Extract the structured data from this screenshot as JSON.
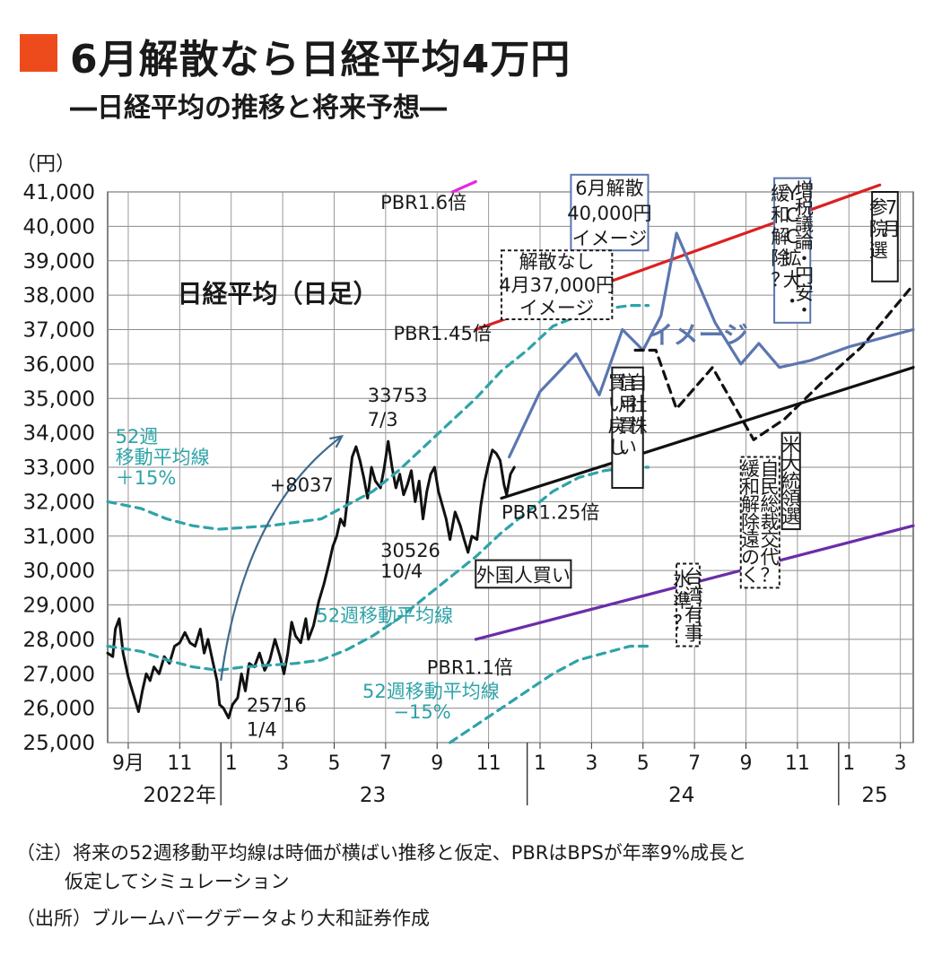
{
  "header": {
    "title": "6月解散なら日経平均4万円",
    "subtitle": "―日経平均の推移と将来予想―"
  },
  "notes": {
    "note1": "（注）将来の52週移動平均線は時価が横ばい推移と仮定、PBRはBPSが年率9%成長と",
    "note2": "仮定してシミュレーション",
    "source": "（出所）ブルームバーグデータより大和証券作成"
  },
  "chart_data": {
    "type": "line",
    "title": "日経平均（日足）",
    "ylabel": "（円）",
    "ylim": [
      25000,
      41000
    ],
    "yticks": [
      25000,
      26000,
      27000,
      28000,
      29000,
      30000,
      31000,
      32000,
      33000,
      34000,
      35000,
      36000,
      37000,
      38000,
      39000,
      40000,
      41000
    ],
    "ytick_labels": [
      "25,000",
      "26,000",
      "27,000",
      "28,000",
      "29,000",
      "30,000",
      "31,000",
      "32,000",
      "33,000",
      "34,000",
      "35,000",
      "36,000",
      "37,000",
      "38,000",
      "39,000",
      "40,000",
      "41,000"
    ],
    "x_unit": "months since 2022-08",
    "xlim": [
      0.2,
      31.5
    ],
    "xticks": [
      {
        "x": 1.0,
        "label": "9月"
      },
      {
        "x": 3.0,
        "label": "11"
      },
      {
        "x": 5.0,
        "label": "1"
      },
      {
        "x": 7.0,
        "label": "3"
      },
      {
        "x": 9.0,
        "label": "5"
      },
      {
        "x": 11.0,
        "label": "7"
      },
      {
        "x": 13.0,
        "label": "9"
      },
      {
        "x": 15.0,
        "label": "11"
      },
      {
        "x": 17.0,
        "label": "1"
      },
      {
        "x": 19.0,
        "label": "3"
      },
      {
        "x": 21.0,
        "label": "5"
      },
      {
        "x": 23.0,
        "label": "7"
      },
      {
        "x": 25.0,
        "label": "9"
      },
      {
        "x": 27.0,
        "label": "11"
      },
      {
        "x": 29.0,
        "label": "1"
      },
      {
        "x": 31.0,
        "label": "3"
      }
    ],
    "year_labels": [
      {
        "x": 3.0,
        "label": "2022年"
      },
      {
        "x": 10.5,
        "label": "23"
      },
      {
        "x": 22.5,
        "label": "24"
      },
      {
        "x": 30.0,
        "label": "25"
      }
    ],
    "year_dividers": [
      4.6,
      16.5,
      28.6
    ],
    "series": [
      {
        "name": "日経平均（日足）",
        "color": "#111111",
        "points": [
          [
            0.2,
            27600
          ],
          [
            0.4,
            27500
          ],
          [
            0.5,
            28300
          ],
          [
            0.65,
            28600
          ],
          [
            0.8,
            27600
          ],
          [
            1.0,
            26900
          ],
          [
            1.2,
            26400
          ],
          [
            1.4,
            25900
          ],
          [
            1.55,
            26500
          ],
          [
            1.7,
            27000
          ],
          [
            1.85,
            26800
          ],
          [
            2.0,
            27200
          ],
          [
            2.2,
            27000
          ],
          [
            2.4,
            27500
          ],
          [
            2.6,
            27300
          ],
          [
            2.8,
            27800
          ],
          [
            3.0,
            27900
          ],
          [
            3.2,
            28200
          ],
          [
            3.4,
            27900
          ],
          [
            3.6,
            27800
          ],
          [
            3.8,
            28300
          ],
          [
            3.95,
            27600
          ],
          [
            4.1,
            28000
          ],
          [
            4.3,
            27300
          ],
          [
            4.45,
            26800
          ],
          [
            4.55,
            26100
          ],
          [
            4.7,
            26000
          ],
          [
            4.9,
            25716
          ],
          [
            5.05,
            26100
          ],
          [
            5.25,
            26300
          ],
          [
            5.4,
            27000
          ],
          [
            5.55,
            26500
          ],
          [
            5.7,
            27300
          ],
          [
            5.9,
            27200
          ],
          [
            6.1,
            27600
          ],
          [
            6.3,
            27100
          ],
          [
            6.5,
            27400
          ],
          [
            6.7,
            28000
          ],
          [
            6.9,
            27500
          ],
          [
            7.05,
            27000
          ],
          [
            7.2,
            27600
          ],
          [
            7.35,
            28500
          ],
          [
            7.5,
            28100
          ],
          [
            7.7,
            27900
          ],
          [
            7.9,
            28600
          ],
          [
            8.0,
            28000
          ],
          [
            8.2,
            28400
          ],
          [
            8.4,
            29100
          ],
          [
            8.6,
            29600
          ],
          [
            8.8,
            30200
          ],
          [
            8.95,
            30700
          ],
          [
            9.1,
            31000
          ],
          [
            9.25,
            31500
          ],
          [
            9.4,
            31300
          ],
          [
            9.55,
            32300
          ],
          [
            9.7,
            33300
          ],
          [
            9.85,
            33600
          ],
          [
            10.0,
            33200
          ],
          [
            10.15,
            32700
          ],
          [
            10.3,
            32100
          ],
          [
            10.45,
            33000
          ],
          [
            10.6,
            32600
          ],
          [
            10.8,
            32400
          ],
          [
            10.95,
            33000
          ],
          [
            11.1,
            33753
          ],
          [
            11.25,
            33000
          ],
          [
            11.4,
            32400
          ],
          [
            11.55,
            32800
          ],
          [
            11.7,
            32200
          ],
          [
            11.85,
            32500
          ],
          [
            12.0,
            32900
          ],
          [
            12.15,
            32000
          ],
          [
            12.3,
            32600
          ],
          [
            12.45,
            31500
          ],
          [
            12.6,
            32300
          ],
          [
            12.75,
            32800
          ],
          [
            12.9,
            33000
          ],
          [
            13.05,
            32300
          ],
          [
            13.2,
            31900
          ],
          [
            13.35,
            31500
          ],
          [
            13.5,
            30900
          ],
          [
            13.7,
            31700
          ],
          [
            13.9,
            31300
          ],
          [
            14.05,
            30900
          ],
          [
            14.2,
            30526
          ],
          [
            14.35,
            31000
          ],
          [
            14.55,
            30900
          ],
          [
            14.7,
            31900
          ],
          [
            14.85,
            32600
          ],
          [
            15.0,
            33100
          ],
          [
            15.15,
            33500
          ],
          [
            15.3,
            33400
          ],
          [
            15.45,
            33200
          ],
          [
            15.6,
            32500
          ],
          [
            15.7,
            32200
          ],
          [
            15.85,
            32800
          ],
          [
            16.0,
            33000
          ]
        ]
      },
      {
        "name": "52週移動平均線",
        "color": "#2ea3a8",
        "dash": true,
        "points": [
          [
            0.2,
            27800
          ],
          [
            1.5,
            27650
          ],
          [
            2.5,
            27400
          ],
          [
            3.5,
            27200
          ],
          [
            4.5,
            27100
          ],
          [
            5.5,
            27200
          ],
          [
            6.5,
            27250
          ],
          [
            7.5,
            27300
          ],
          [
            8.5,
            27400
          ],
          [
            9.5,
            27700
          ],
          [
            10.5,
            28100
          ],
          [
            11.5,
            28600
          ],
          [
            12.5,
            29200
          ],
          [
            13.5,
            29800
          ],
          [
            14.5,
            30400
          ],
          [
            15.5,
            31100
          ],
          [
            16.5,
            31700
          ],
          [
            17.5,
            32300
          ],
          [
            18.5,
            32700
          ],
          [
            19.5,
            32900
          ],
          [
            20.5,
            33000
          ],
          [
            21.2,
            33000
          ]
        ]
      },
      {
        "name": "52週移動平均線＋15%",
        "color": "#2ea3a8",
        "dash": true,
        "points": [
          [
            0.2,
            32000
          ],
          [
            1.5,
            31800
          ],
          [
            2.5,
            31500
          ],
          [
            3.5,
            31300
          ],
          [
            4.5,
            31200
          ],
          [
            5.5,
            31250
          ],
          [
            6.5,
            31300
          ],
          [
            7.5,
            31400
          ],
          [
            8.5,
            31500
          ],
          [
            9.5,
            31900
          ],
          [
            10.5,
            32300
          ],
          [
            11.5,
            32900
          ],
          [
            12.5,
            33600
          ],
          [
            13.5,
            34300
          ],
          [
            14.5,
            35000
          ],
          [
            15.5,
            35800
          ],
          [
            16.5,
            36400
          ],
          [
            17.5,
            37100
          ],
          [
            18.5,
            37400
          ],
          [
            19.5,
            37600
          ],
          [
            20.5,
            37700
          ],
          [
            21.2,
            37700
          ]
        ]
      },
      {
        "name": "52週移動平均線−15%",
        "color": "#2ea3a8",
        "dash": true,
        "points": [
          [
            13.5,
            25000
          ],
          [
            14.5,
            25500
          ],
          [
            15.5,
            26000
          ],
          [
            16.5,
            26500
          ],
          [
            17.5,
            27000
          ],
          [
            18.5,
            27400
          ],
          [
            19.5,
            27600
          ],
          [
            20.5,
            27800
          ],
          [
            21.2,
            27800
          ]
        ]
      },
      {
        "name": "PBR1.6倍",
        "color": "#e428e0",
        "points": [
          [
            13.6,
            41000
          ],
          [
            14.5,
            41300
          ]
        ]
      },
      {
        "name": "PBR1.45倍",
        "color": "#dd1f1f",
        "points": [
          [
            14.5,
            37000
          ],
          [
            30.2,
            41200
          ]
        ]
      },
      {
        "name": "PBR1.25倍",
        "color": "#111111",
        "points": [
          [
            15.5,
            32100
          ],
          [
            31.5,
            35900
          ]
        ]
      },
      {
        "name": "PBR1.1倍",
        "color": "#6a2ea8",
        "points": [
          [
            14.5,
            28000
          ],
          [
            31.5,
            31300
          ]
        ]
      },
      {
        "name": "6月解散40,000円イメージ",
        "color": "#5b76b0",
        "points": [
          [
            15.8,
            33300
          ],
          [
            17.0,
            35200
          ],
          [
            18.4,
            36300
          ],
          [
            19.3,
            35100
          ],
          [
            20.2,
            37000
          ],
          [
            21.0,
            36400
          ],
          [
            21.7,
            37400
          ],
          [
            22.3,
            39800
          ],
          [
            23.8,
            37200
          ],
          [
            24.8,
            36000
          ],
          [
            25.5,
            36600
          ],
          [
            26.3,
            35900
          ],
          [
            27.5,
            36100
          ],
          [
            29.0,
            36500
          ],
          [
            31.5,
            37000
          ]
        ]
      },
      {
        "name": "解散なし4月37,000円イメージ",
        "color": "#111111",
        "dash": true,
        "points": [
          [
            20.7,
            36400
          ],
          [
            21.5,
            36400
          ],
          [
            22.3,
            34700
          ],
          [
            23.7,
            35900
          ],
          [
            25.3,
            33800
          ],
          [
            26.5,
            34400
          ],
          [
            28.0,
            35500
          ],
          [
            29.5,
            36500
          ],
          [
            31.5,
            38300
          ]
        ]
      }
    ],
    "text_labels": [
      {
        "text": "PBR1.6倍",
        "x": 10.8,
        "y": 40500,
        "color": "#1a1a1a"
      },
      {
        "text": "PBR1.45倍",
        "x": 11.3,
        "y": 36700,
        "color": "#1a1a1a"
      },
      {
        "text": "PBR1.25倍",
        "x": 15.5,
        "y": 31500,
        "color": "#1a1a1a"
      },
      {
        "text": "PBR1.1倍",
        "x": 12.6,
        "y": 27000,
        "color": "#1a1a1a"
      },
      {
        "text": "33753",
        "x": 10.3,
        "y": 34900,
        "color": "#1a1a1a"
      },
      {
        "text": "7/3",
        "x": 10.3,
        "y": 34200,
        "color": "#1a1a1a"
      },
      {
        "text": "30526",
        "x": 10.8,
        "y": 30400,
        "color": "#1a1a1a"
      },
      {
        "text": "10/4",
        "x": 10.8,
        "y": 29800,
        "color": "#1a1a1a"
      },
      {
        "text": "25716",
        "x": 5.6,
        "y": 25900,
        "color": "#1a1a1a"
      },
      {
        "text": "1/4",
        "x": 5.6,
        "y": 25200,
        "color": "#1a1a1a"
      },
      {
        "text": "+8037",
        "x": 6.5,
        "y": 32300,
        "color": "#1a1a1a"
      },
      {
        "text": "52週",
        "x": 0.5,
        "y": 33700,
        "color": "#2ea3a8"
      },
      {
        "text": "移動平均線",
        "x": 0.5,
        "y": 33100,
        "color": "#2ea3a8"
      },
      {
        "text": "＋15%",
        "x": 0.5,
        "y": 32500,
        "color": "#2ea3a8"
      },
      {
        "text": "52週移動平均線",
        "x": 8.3,
        "y": 28500,
        "color": "#2ea3a8"
      },
      {
        "text": "52週移動平均線",
        "x": 10.1,
        "y": 26300,
        "color": "#2ea3a8"
      },
      {
        "text": "−15%",
        "x": 11.3,
        "y": 25700,
        "color": "#2ea3a8"
      },
      {
        "text": "日経平均（日足）",
        "x": 2.9,
        "y": 37800,
        "color": "#1a1a1a"
      },
      {
        "text": "イメージ",
        "x": 21.2,
        "y": 36600,
        "color": "#5b76b0"
      }
    ],
    "box_labels": [
      {
        "lines": [
          "6月解散",
          "40,000円",
          "イメージ"
        ],
        "border": "#5b76b0",
        "dashed": false,
        "x1": 18.2,
        "x2": 21.2,
        "y1": 39300,
        "y2": 41500
      },
      {
        "lines": [
          "解散なし",
          "4月37,000円",
          "イメージ"
        ],
        "border": "#1a1a1a",
        "dashed": true,
        "x1": 15.5,
        "x2": 19.8,
        "y1": 37300,
        "y2": 39300
      },
      {
        "lines": [
          "外国人買い"
        ],
        "border": "#1a1a1a",
        "dashed": false,
        "x1": 14.5,
        "x2": 18.2,
        "y1": 29500,
        "y2": 30300
      }
    ],
    "vertical_boxes": [
      {
        "columns": [
          "自社株",
          "信用買い",
          "買い戻し"
        ],
        "border": "#1a1a1a",
        "dashed": false,
        "x1": 19.8,
        "x2": 21.0,
        "y1": 32400,
        "y2": 35900
      },
      {
        "columns": [
          "増税議論・円安・",
          "YCC拡大・",
          "緩和解除？"
        ],
        "border": "#5b76b0",
        "dashed": false,
        "x1": 26.1,
        "x2": 27.5,
        "y1": 37200,
        "y2": 41400
      },
      {
        "columns": [
          "7月",
          "参院選"
        ],
        "border": "#1a1a1a",
        "dashed": false,
        "x1": 29.9,
        "x2": 30.9,
        "y1": 38400,
        "y2": 41000
      },
      {
        "columns": [
          "米大統領選"
        ],
        "border": "#1a1a1a",
        "dashed": false,
        "x1": 26.4,
        "x2": 27.1,
        "y1": 31200,
        "y2": 34000
      },
      {
        "columns": [
          "自民総裁交代？",
          "緩和解除遠のく"
        ],
        "border": "#1a1a1a",
        "dashed": true,
        "x1": 24.8,
        "x2": 26.3,
        "y1": 29500,
        "y2": 33300
      },
      {
        "columns": [
          "台湾有事",
          "水準？"
        ],
        "border": "#1a1a1a",
        "dashed": true,
        "x1": 22.3,
        "x2": 23.2,
        "y1": 27800,
        "y2": 30200
      }
    ],
    "arrows": [
      {
        "from": [
          4.6,
          26800
        ],
        "via": [
          5.5,
          31800
        ],
        "to": [
          9.3,
          33900
        ],
        "color": "#3f6a8c"
      }
    ]
  }
}
